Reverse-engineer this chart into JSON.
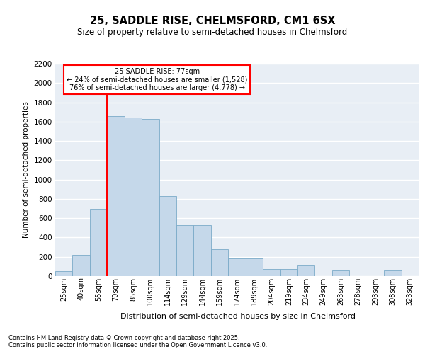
{
  "title": "25, SADDLE RISE, CHELMSFORD, CM1 6SX",
  "subtitle": "Size of property relative to semi-detached houses in Chelmsford",
  "xlabel": "Distribution of semi-detached houses by size in Chelmsford",
  "ylabel": "Number of semi-detached properties",
  "categories": [
    "25sqm",
    "40sqm",
    "55sqm",
    "70sqm",
    "85sqm",
    "100sqm",
    "114sqm",
    "129sqm",
    "144sqm",
    "159sqm",
    "174sqm",
    "189sqm",
    "204sqm",
    "219sqm",
    "234sqm",
    "249sqm",
    "263sqm",
    "278sqm",
    "293sqm",
    "308sqm",
    "323sqm"
  ],
  "values": [
    50,
    220,
    700,
    1660,
    1640,
    1630,
    830,
    530,
    530,
    280,
    185,
    185,
    75,
    75,
    110,
    0,
    60,
    0,
    0,
    60,
    0
  ],
  "bar_color": "#c5d8ea",
  "bar_edge_color": "#7aaac8",
  "red_line_index": 3,
  "red_line_label": "25 SADDLE RISE: 77sqm",
  "annotation_smaller": "← 24% of semi-detached houses are smaller (1,528)",
  "annotation_larger": "76% of semi-detached houses are larger (4,778) →",
  "ylim": [
    0,
    2200
  ],
  "yticks": [
    0,
    200,
    400,
    600,
    800,
    1000,
    1200,
    1400,
    1600,
    1800,
    2000,
    2200
  ],
  "background_color": "#e8eef5",
  "grid_color": "#ffffff",
  "footer_line1": "Contains HM Land Registry data © Crown copyright and database right 2025.",
  "footer_line2": "Contains public sector information licensed under the Open Government Licence v3.0."
}
